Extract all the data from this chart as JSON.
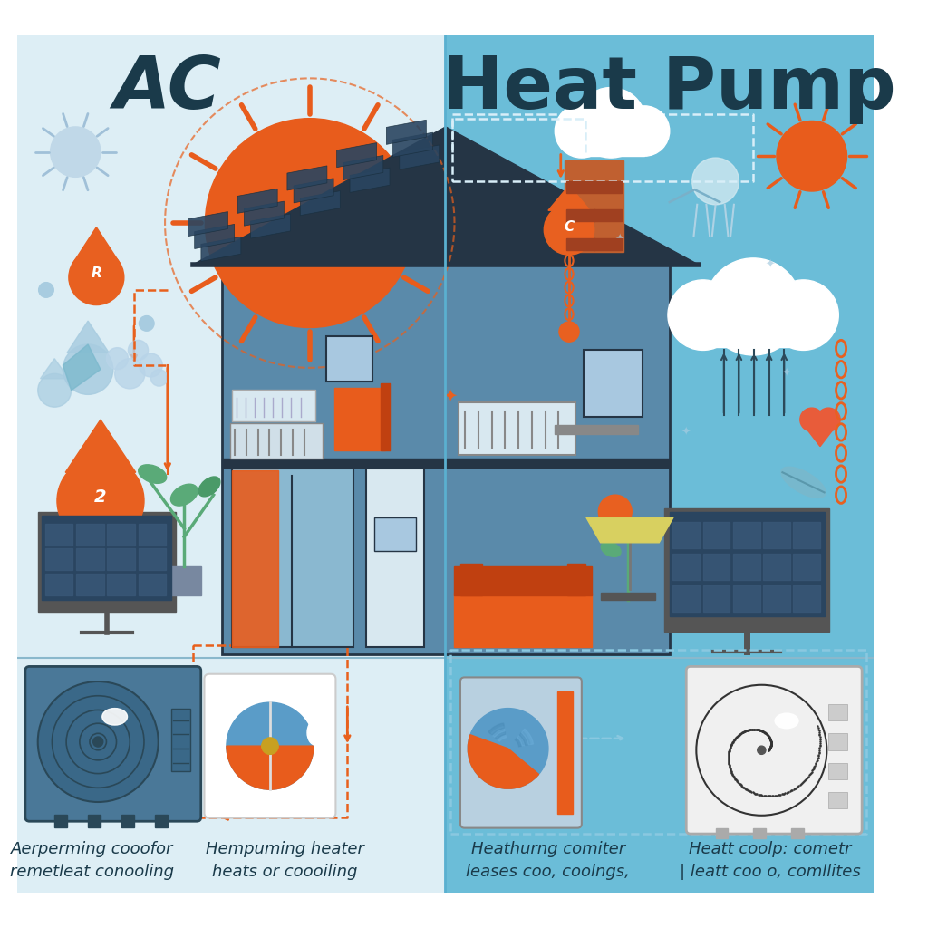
{
  "left_bg_color": "#ddeef5",
  "right_bg_color": "#6bbdd8",
  "left_title": "AC",
  "right_title": "Heat Pump",
  "title_color": "#1a3a4a",
  "title_fontsize": 58,
  "title_fontweight": "bold",
  "caption_color": "#1a3a4a",
  "caption_fontsize": 13,
  "orange_color": "#e85c1c",
  "blue_icon_color": "#8abdd4",
  "dark_blue": "#2c4a5a",
  "house_roof_color": "#253545",
  "house_wall_color": "#5a8aaa",
  "house_wall_dark": "#4a7090",
  "house_solar_color": "#2a4560",
  "chimney_color": "#c06030",
  "white_color": "#ffffff",
  "sun_color": "#e85c1c",
  "cloud_color": "#ffffff",
  "leaf_color": "#7ab8cc",
  "orange_drop_color": "#e86020",
  "ac_unit_color": "#5a88a8",
  "ac_dark": "#3a6888",
  "hp_white": "#e8e8f0",
  "dashed_orange": "#e8601c",
  "dashed_blue": "#8ac0d8",
  "left_cap1": "Aerperming cooofor",
  "left_cap2": "remetleat conooling",
  "left_cap3": "Hempuming heater",
  "left_cap4": "heats or coooiling",
  "right_cap1": "Heathurng comiter",
  "right_cap2": "leases coo, coolngs,",
  "right_cap3": "Heatt coolp: cometr",
  "right_cap4": "| leatt coo o, comllites"
}
